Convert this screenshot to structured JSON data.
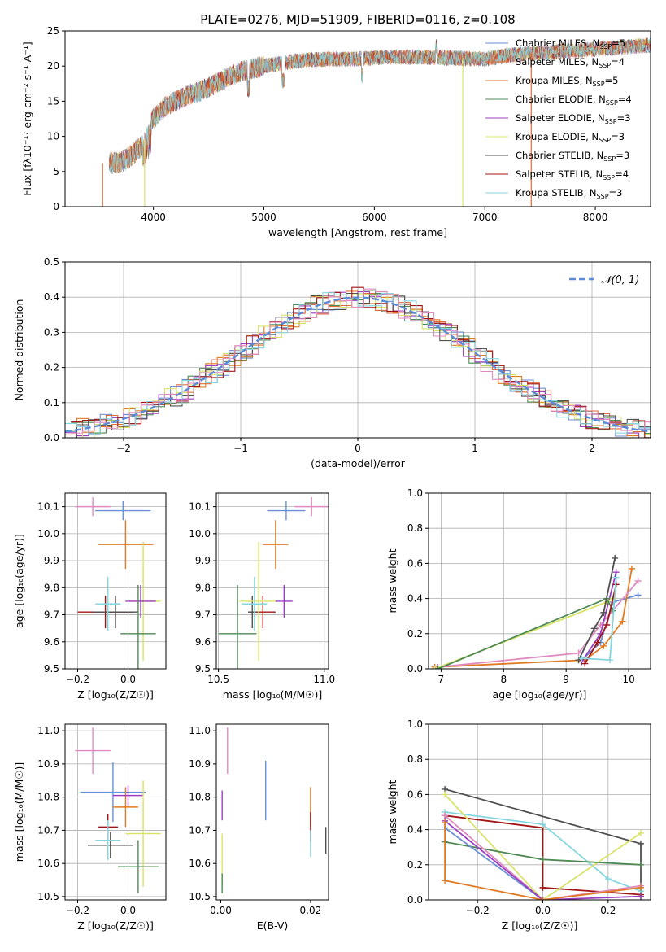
{
  "figure": {
    "title": "PLATE=0276, MJD=51909, FIBERID=0116, z=0.108"
  },
  "colors": {
    "chabrier_miles": "#6a8fd6",
    "salpeter_miles": "#e06a3a",
    "kroupa_miles": "#e07b24",
    "chabrier_elodie": "#4f8a55",
    "salpeter_elodie": "#9b3fc1",
    "kroupa_elodie": "#d9e36a",
    "chabrier_stelib": "#505050",
    "salpeter_stelib": "#a31515",
    "kroupa_stelib": "#86d6e0",
    "pink": "#e08bc0",
    "normal_curve": "#5b8bd6"
  },
  "chart_data": [
    {
      "id": "spectrum",
      "type": "line",
      "title": "PLATE=0276, MJD=51909, FIBERID=0116, z=0.108",
      "xlabel": "wavelength [Angstrom, rest frame]",
      "ylabel": "Flux [fλ10⁻¹⁷ erg cm⁻² s⁻¹ A⁻¹]",
      "xlim": [
        3200,
        8500
      ],
      "ylim": [
        0,
        25
      ],
      "xticks": [
        "4000",
        "5000",
        "6000",
        "7000",
        "8000"
      ],
      "yticks": [
        "0",
        "5",
        "10",
        "15",
        "20",
        "25"
      ],
      "grid": false,
      "legend_position": "right",
      "legend": [
        {
          "label": "Chabrier MILES, N",
          "sub": "SSP",
          "val": "=5",
          "color": "#6a8fd6"
        },
        {
          "label": "Salpeter MILES, N",
          "sub": "SSP",
          "val": "=4",
          "color": "#e06a3a"
        },
        {
          "label": "Kroupa MILES, N",
          "sub": "SSP",
          "val": "=5",
          "color": "#e07b24"
        },
        {
          "label": "Chabrier ELODIE, N",
          "sub": "SSP",
          "val": "=4",
          "color": "#4f8a55"
        },
        {
          "label": "Salpeter ELODIE, N",
          "sub": "SSP",
          "val": "=3",
          "color": "#9b3fc1"
        },
        {
          "label": "Kroupa ELODIE, N",
          "sub": "SSP",
          "val": "=3",
          "color": "#d9e36a"
        },
        {
          "label": "Chabrier STELIB, N",
          "sub": "SSP",
          "val": "=3",
          "color": "#505050"
        },
        {
          "label": "Salpeter STELIB, N",
          "sub": "SSP",
          "val": "=4",
          "color": "#a31515"
        },
        {
          "label": "Kroupa STELIB, N",
          "sub": "SSP",
          "val": "=3",
          "color": "#86d6e0"
        }
      ],
      "envelope": {
        "x": [
          3600,
          3700,
          3800,
          3900,
          4000,
          4100,
          4200,
          4300,
          4400,
          4500,
          4600,
          4700,
          4800,
          5000,
          5200,
          5400,
          5600,
          5800,
          6000,
          6200,
          6400,
          6600,
          6800,
          7000,
          7200,
          7400,
          7600,
          7800,
          8000,
          8200,
          8500
        ],
        "y": [
          6.2,
          6.3,
          7.2,
          8.8,
          12.5,
          14.2,
          15.0,
          15.8,
          16.3,
          17.0,
          17.8,
          18.6,
          19.3,
          20.0,
          20.5,
          20.9,
          21.0,
          21.0,
          21.2,
          21.3,
          21.3,
          21.2,
          21.1,
          21.0,
          21.5,
          21.8,
          22.0,
          22.2,
          22.4,
          22.6,
          23.0
        ]
      },
      "cutoffs": [
        {
          "x": 3540,
          "color": "#e06a3a"
        },
        {
          "x": 3920,
          "color": "#d9e36a"
        },
        {
          "x": 6800,
          "color": "#d9e36a"
        },
        {
          "x": 7420,
          "color": "#e06a3a"
        }
      ]
    },
    {
      "id": "histogram",
      "type": "bar",
      "xlabel": "(data-model)/error",
      "ylabel": "Normed distribution",
      "xlim": [
        -2.5,
        2.5
      ],
      "ylim": [
        0,
        0.5
      ],
      "xticks": [
        "−2",
        "−1",
        "0",
        "1",
        "2"
      ],
      "yticks": [
        "0.0",
        "0.1",
        "0.2",
        "0.3",
        "0.4",
        "0.5"
      ],
      "grid": true,
      "legend_position": "top-right",
      "legend_label": "𝒩(0, 1)",
      "bin_width": 0.1,
      "series_count": 9
    },
    {
      "id": "age-vs-z",
      "type": "scatter",
      "xlabel": "Z [log₁₀(Z/Z☉)]",
      "ylabel": "age  [log₁₀(age/yr)]",
      "xlim": [
        -0.25,
        0.15
      ],
      "ylim": [
        9.5,
        10.15
      ],
      "xticks": [
        "−0.2",
        "0.0"
      ],
      "yticks": [
        "9.5",
        "9.6",
        "9.7",
        "9.8",
        "9.9",
        "10.0",
        "10.1"
      ],
      "grid": true,
      "points": [
        {
          "x": -0.14,
          "y": 10.1,
          "xerr": 0.07,
          "yerr": 0.035,
          "color": "#e08bc0"
        },
        {
          "x": -0.02,
          "y": 10.085,
          "xerr": 0.11,
          "yerr": 0.035,
          "color": "#6a8fd6"
        },
        {
          "x": -0.01,
          "y": 9.96,
          "xerr": 0.11,
          "yerr": 0.09,
          "color": "#e07b24"
        },
        {
          "x": -0.09,
          "y": 9.71,
          "xerr": 0.11,
          "yerr": 0.06,
          "color": "#a31515"
        },
        {
          "x": -0.05,
          "y": 9.71,
          "xerr": 0.09,
          "yerr": 0.06,
          "color": "#505050"
        },
        {
          "x": 0.06,
          "y": 9.75,
          "xerr": 0.07,
          "yerr": 0.22,
          "color": "#d9e36a"
        },
        {
          "x": 0.05,
          "y": 9.75,
          "xerr": 0.06,
          "yerr": 0.06,
          "color": "#9b3fc1"
        },
        {
          "x": 0.04,
          "y": 9.63,
          "xerr": 0.07,
          "yerr": 0.18,
          "color": "#4f8a55"
        },
        {
          "x": -0.08,
          "y": 9.74,
          "xerr": 0.05,
          "yerr": 0.1,
          "color": "#86d6e0"
        }
      ]
    },
    {
      "id": "age-vs-mass",
      "type": "scatter",
      "xlabel": "mass [log₁₀(M/M☉)]",
      "ylabel": "",
      "xlim": [
        10.49,
        11.02
      ],
      "ylim": [
        9.5,
        10.15
      ],
      "xticks": [
        "10.5",
        "11.0"
      ],
      "yticks": [
        "9.5",
        "9.6",
        "9.7",
        "9.8",
        "9.9",
        "10.0",
        "10.1"
      ],
      "grid": true,
      "points": [
        {
          "x": 10.94,
          "y": 10.1,
          "xerr": 0.08,
          "yerr": 0.035,
          "color": "#e08bc0"
        },
        {
          "x": 10.82,
          "y": 10.085,
          "xerr": 0.09,
          "yerr": 0.035,
          "color": "#6a8fd6"
        },
        {
          "x": 10.77,
          "y": 9.96,
          "xerr": 0.06,
          "yerr": 0.09,
          "color": "#e07b24"
        },
        {
          "x": 10.71,
          "y": 9.71,
          "xerr": 0.06,
          "yerr": 0.06,
          "color": "#a31515"
        },
        {
          "x": 10.66,
          "y": 9.71,
          "xerr": 0.02,
          "yerr": 0.06,
          "color": "#505050"
        },
        {
          "x": 10.69,
          "y": 9.75,
          "xerr": 0.09,
          "yerr": 0.22,
          "color": "#d9e36a"
        },
        {
          "x": 10.81,
          "y": 9.75,
          "xerr": 0.04,
          "yerr": 0.06,
          "color": "#9b3fc1"
        },
        {
          "x": 10.59,
          "y": 9.63,
          "xerr": 0.09,
          "yerr": 0.18,
          "color": "#4f8a55"
        },
        {
          "x": 10.67,
          "y": 9.74,
          "xerr": 0.06,
          "yerr": 0.1,
          "color": "#86d6e0"
        }
      ]
    },
    {
      "id": "weight-vs-age",
      "type": "line",
      "xlabel": "age  [log₁₀(age/yr)]",
      "ylabel": "mass weight",
      "xlim": [
        6.8,
        10.35
      ],
      "ylim": [
        0,
        1.0
      ],
      "xticks": [
        "7",
        "8",
        "9",
        "10"
      ],
      "yticks": [
        "0.0",
        "0.2",
        "0.4",
        "0.6",
        "0.8",
        "1.0"
      ],
      "grid": true,
      "series": [
        {
          "color": "#6a8fd6",
          "x": [
            9.25,
            9.55,
            9.75,
            10.15
          ],
          "y": [
            0.05,
            0.15,
            0.38,
            0.42
          ]
        },
        {
          "color": "#e07b24",
          "x": [
            6.9,
            9.3,
            9.6,
            9.9,
            10.05
          ],
          "y": [
            0.01,
            0.05,
            0.13,
            0.27,
            0.57
          ]
        },
        {
          "color": "#e08bc0",
          "x": [
            6.95,
            9.2,
            9.55,
            10.15
          ],
          "y": [
            0.01,
            0.09,
            0.25,
            0.5
          ]
        },
        {
          "color": "#9b3fc1",
          "x": [
            9.25,
            9.55,
            9.8
          ],
          "y": [
            0.04,
            0.2,
            0.55
          ]
        },
        {
          "color": "#d9e36a",
          "x": [
            6.9,
            9.65,
            9.75
          ],
          "y": [
            0.0,
            0.38,
            0.4
          ]
        },
        {
          "color": "#4f8a55",
          "x": [
            6.95,
            9.65,
            9.75
          ],
          "y": [
            0.0,
            0.4,
            0.33
          ]
        },
        {
          "color": "#505050",
          "x": [
            9.2,
            9.45,
            9.6,
            9.78
          ],
          "y": [
            0.05,
            0.23,
            0.32,
            0.63
          ]
        },
        {
          "color": "#a31515",
          "x": [
            9.3,
            9.5,
            9.65,
            9.8
          ],
          "y": [
            0.03,
            0.15,
            0.25,
            0.48
          ]
        },
        {
          "color": "#86d6e0",
          "x": [
            9.25,
            9.7,
            9.8
          ],
          "y": [
            0.06,
            0.05,
            0.52
          ]
        }
      ]
    },
    {
      "id": "mass-vs-z",
      "type": "scatter",
      "xlabel": "Z [log₁₀(Z/Z☉)]",
      "ylabel": "mass [log₁₀(M/M☉)]",
      "xlim": [
        -0.25,
        0.15
      ],
      "ylim": [
        10.49,
        11.02
      ],
      "xticks": [
        "−0.2",
        "0.0"
      ],
      "yticks": [
        "10.5",
        "10.6",
        "10.7",
        "10.8",
        "10.9",
        "11.0"
      ],
      "grid": true,
      "points": [
        {
          "x": -0.14,
          "y": 10.94,
          "xerr": 0.07,
          "yerr": 0.07,
          "color": "#e08bc0"
        },
        {
          "x": -0.06,
          "y": 10.815,
          "xerr": 0.13,
          "yerr": 0.09,
          "color": "#6a8fd6"
        },
        {
          "x": -0.01,
          "y": 10.77,
          "xerr": 0.05,
          "yerr": 0.06,
          "color": "#e07b24"
        },
        {
          "x": 0.0,
          "y": 10.805,
          "xerr": 0.06,
          "yerr": 0.03,
          "color": "#9b3fc1"
        },
        {
          "x": -0.08,
          "y": 10.71,
          "xerr": 0.04,
          "yerr": 0.04,
          "color": "#a31515"
        },
        {
          "x": -0.07,
          "y": 10.655,
          "xerr": 0.09,
          "yerr": 0.04,
          "color": "#505050"
        },
        {
          "x": 0.06,
          "y": 10.69,
          "xerr": 0.07,
          "yerr": 0.16,
          "color": "#d9e36a"
        },
        {
          "x": 0.04,
          "y": 10.59,
          "xerr": 0.08,
          "yerr": 0.08,
          "color": "#4f8a55"
        },
        {
          "x": -0.08,
          "y": 10.67,
          "xerr": 0.05,
          "yerr": 0.06,
          "color": "#86d6e0"
        }
      ]
    },
    {
      "id": "mass-vs-ebv",
      "type": "scatter",
      "xlabel": "E(B-V)",
      "ylabel": "",
      "xlim": [
        -0.001,
        0.024
      ],
      "ylim": [
        10.49,
        11.02
      ],
      "xticks": [
        "0.00",
        "0.02"
      ],
      "yticks": [
        "10.5",
        "10.6",
        "10.7",
        "10.8",
        "10.9",
        "11.0"
      ],
      "grid": false,
      "points": [
        {
          "x": 0.0015,
          "y": 10.94,
          "yerr": 0.07,
          "color": "#e08bc0"
        },
        {
          "x": 0.01,
          "y": 10.82,
          "yerr": 0.09,
          "color": "#6a8fd6"
        },
        {
          "x": 0.02,
          "y": 10.77,
          "yerr": 0.06,
          "color": "#e07b24"
        },
        {
          "x": 0.0003,
          "y": 10.775,
          "yerr": 0.045,
          "color": "#9b3fc1"
        },
        {
          "x": 0.02,
          "y": 10.71,
          "yerr": 0.045,
          "color": "#a31515"
        },
        {
          "x": 0.0234,
          "y": 10.67,
          "yerr": 0.04,
          "color": "#505050"
        },
        {
          "x": 0.0003,
          "y": 10.61,
          "yerr": 0.08,
          "color": "#d9e36a"
        },
        {
          "x": 0.0003,
          "y": 10.54,
          "yerr": 0.03,
          "color": "#4f8a55"
        },
        {
          "x": 0.02,
          "y": 10.66,
          "yerr": 0.04,
          "color": "#86d6e0"
        }
      ]
    },
    {
      "id": "weight-vs-z",
      "type": "line",
      "xlabel": "Z [log₁₀(Z/Z☉)]",
      "ylabel": "mass weight",
      "xlim": [
        -0.35,
        0.33
      ],
      "ylim": [
        0,
        1.0
      ],
      "xticks": [
        "−0.2",
        "0.0",
        "0.2"
      ],
      "yticks": [
        "0.0",
        "0.2",
        "0.4",
        "0.6",
        "0.8",
        "1.0"
      ],
      "grid": true,
      "series": [
        {
          "color": "#505050",
          "x": [
            -0.3,
            0.3,
            0.3
          ],
          "y": [
            0.63,
            0.32,
            0.02
          ]
        },
        {
          "color": "#a31515",
          "x": [
            -0.3,
            0.0,
            0.0,
            0.3
          ],
          "y": [
            0.48,
            0.41,
            0.07,
            0.03
          ]
        },
        {
          "color": "#86d6e0",
          "x": [
            -0.3,
            0.0,
            0.2,
            0.3
          ],
          "y": [
            0.5,
            0.43,
            0.12,
            0.05
          ]
        },
        {
          "color": "#d9e36a",
          "x": [
            -0.3,
            0.0,
            0.3
          ],
          "y": [
            0.6,
            0.0,
            0.38
          ]
        },
        {
          "color": "#4f8a55",
          "x": [
            -0.3,
            0.0,
            0.3
          ],
          "y": [
            0.33,
            0.23,
            0.2
          ]
        },
        {
          "color": "#e08bc0",
          "x": [
            -0.3,
            0.0,
            0.3
          ],
          "y": [
            0.48,
            0.0,
            0.08
          ]
        },
        {
          "color": "#6a8fd6",
          "x": [
            -0.3,
            0.0
          ],
          "y": [
            0.41,
            0.0
          ]
        },
        {
          "color": "#9b3fc1",
          "x": [
            -0.3,
            0.0,
            0.3
          ],
          "y": [
            0.45,
            0.0,
            0.02
          ]
        },
        {
          "color": "#e07b24",
          "x": [
            -0.3,
            -0.3,
            0.0,
            0.3
          ],
          "y": [
            0.44,
            0.11,
            0.0,
            0.07
          ]
        }
      ]
    }
  ]
}
